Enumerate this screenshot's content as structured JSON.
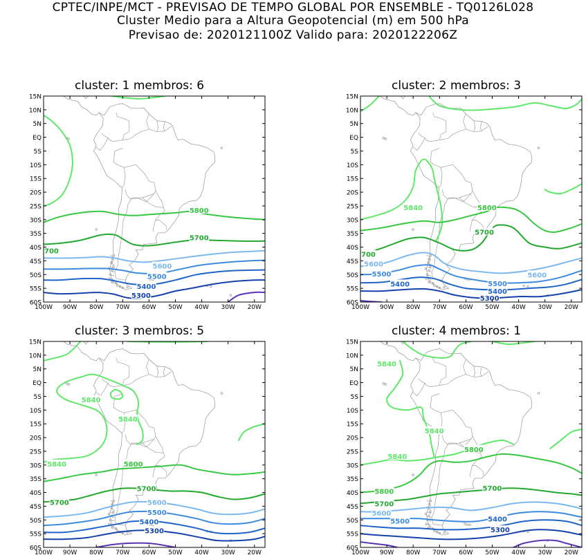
{
  "header": {
    "line1": "CPTEC/INPE/MCT - PREVISAO DE TEMPO GLOBAL POR ENSEMBLE - TQ0126L028",
    "line2": "Cluster Medio para a Altura Geopotencial (m) em 500 hPa",
    "line3": "Previsao de: 2020121100Z    Valido para: 2020122206Z"
  },
  "axes": {
    "lat_labels": [
      "15N",
      "10N",
      "5N",
      "EQ",
      "5S",
      "10S",
      "15S",
      "20S",
      "25S",
      "30S",
      "35S",
      "40S",
      "45S",
      "50S",
      "55S",
      "60S"
    ],
    "lon_labels": [
      "100W",
      "90W",
      "80W",
      "70W",
      "60W",
      "50W",
      "40W",
      "30W",
      "20W"
    ]
  },
  "colors": {
    "c5840": "#5ee86a",
    "c5800": "#36c840",
    "c5700": "#22a82e",
    "c5600": "#7ab8ee",
    "c5500": "#3c8ae0",
    "c5400": "#1e64c8",
    "c5300": "#1442aa",
    "c5200": "#5a32b4",
    "coast": "#a0a0a0"
  },
  "panels": [
    {
      "title": "cluster: 1   membros: 6",
      "labels": [
        {
          "text": "5800",
          "c": "c5800"
        },
        {
          "text": "5700",
          "c": "c5700"
        },
        {
          "text": "700",
          "c": "c5700"
        },
        {
          "text": "5600",
          "c": "c5600"
        },
        {
          "text": "5500",
          "c": "c5500"
        },
        {
          "text": "5400",
          "c": "c5400"
        },
        {
          "text": "5300",
          "c": "c5300"
        }
      ]
    },
    {
      "title": "cluster: 2   membros: 3",
      "labels": [
        {
          "text": "5840",
          "c": "c5840"
        },
        {
          "text": "5800",
          "c": "c5800"
        },
        {
          "text": "5700",
          "c": "c5700"
        },
        {
          "text": "700",
          "c": "c5700"
        },
        {
          "text": "5600",
          "c": "c5600"
        },
        {
          "text": "5600",
          "c": "c5600"
        },
        {
          "text": "5500",
          "c": "c5500"
        },
        {
          "text": "5500",
          "c": "c5500"
        },
        {
          "text": "5400",
          "c": "c5400"
        },
        {
          "text": "5400",
          "c": "c5400"
        },
        {
          "text": "5300",
          "c": "c5300"
        }
      ]
    },
    {
      "title": "cluster: 3   membros: 5",
      "labels": [
        {
          "text": "5840",
          "c": "c5840"
        },
        {
          "text": "5840",
          "c": "c5840"
        },
        {
          "text": "5840",
          "c": "c5840"
        },
        {
          "text": "5800",
          "c": "c5800"
        },
        {
          "text": "5700",
          "c": "c5700"
        },
        {
          "text": "5700",
          "c": "c5700"
        },
        {
          "text": "5600",
          "c": "c5600"
        },
        {
          "text": "5500",
          "c": "c5500"
        },
        {
          "text": "5400",
          "c": "c5400"
        },
        {
          "text": "5300",
          "c": "c5300"
        }
      ]
    },
    {
      "title": "cluster: 4   membros: 1",
      "labels": [
        {
          "text": "5840",
          "c": "c5840"
        },
        {
          "text": "5840",
          "c": "c5840"
        },
        {
          "text": "5840",
          "c": "c5840"
        },
        {
          "text": "5800",
          "c": "c5800"
        },
        {
          "text": "5800",
          "c": "c5800"
        },
        {
          "text": "5700",
          "c": "c5700"
        },
        {
          "text": "5700",
          "c": "c5700"
        },
        {
          "text": "5600",
          "c": "c5600"
        },
        {
          "text": "5500",
          "c": "c5500"
        },
        {
          "text": "5400",
          "c": "c5400"
        },
        {
          "text": "5300",
          "c": "c5300"
        }
      ]
    }
  ]
}
